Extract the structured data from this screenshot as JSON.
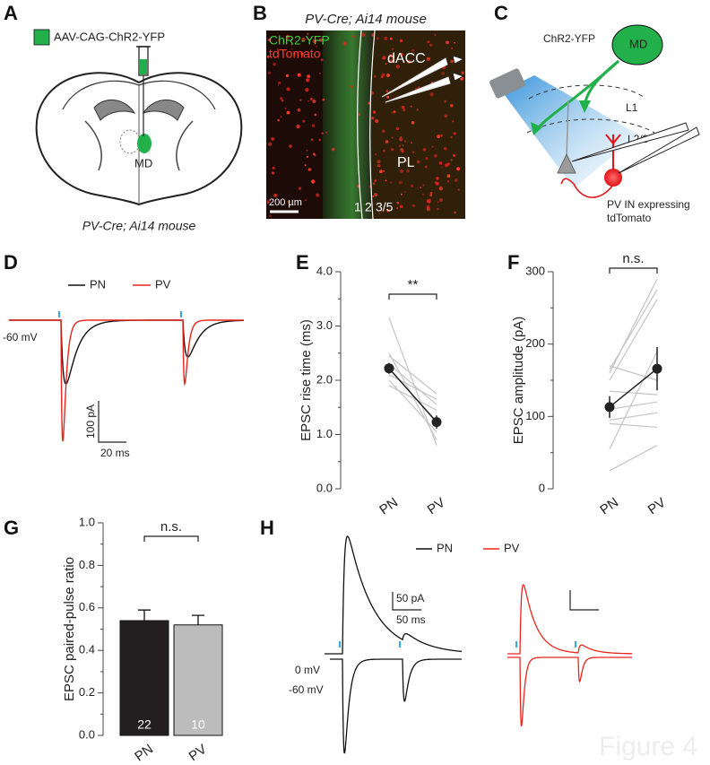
{
  "panel_labels": [
    "A",
    "B",
    "C",
    "D",
    "E",
    "F",
    "G",
    "H"
  ],
  "panel_a": {
    "construct": "AAV-CAG-ChR2-YFP",
    "region": "MD",
    "mouse": "PV-Cre; Ai14 mouse"
  },
  "panel_b": {
    "title": "PV-Cre; Ai14 mouse",
    "channels": [
      "ChR2-YFP",
      "tdTomato"
    ],
    "regions": [
      "dACC",
      "PL"
    ],
    "layers": [
      "1",
      "2",
      "3/5"
    ],
    "scale_bar": "200 µm"
  },
  "panel_c": {
    "source": "ChR2-YFP",
    "region": "MD",
    "layers": [
      "L1",
      "L2/3"
    ],
    "cell_label": [
      "PV IN expressing",
      "tdTomato"
    ]
  },
  "panel_d": {
    "legend": [
      {
        "name": "PN",
        "color": "#111111"
      },
      {
        "name": "PV",
        "color": "#e8251d"
      }
    ],
    "holding": "-60 mV",
    "scale_y": "100 pA",
    "scale_x": "20 ms"
  },
  "panel_h": {
    "legend": [
      {
        "name": "PN",
        "color": "#111111"
      },
      {
        "name": "PV",
        "color": "#e8251d"
      }
    ],
    "holding": [
      "0 mV",
      "-60 mV"
    ],
    "scale_y": "50 pA",
    "scale_x": "50 ms"
  },
  "chart_data": [
    {
      "type": "line",
      "ylabel": "EPSC rise time (ms)",
      "categories": [
        "PN",
        "PV"
      ],
      "ylim": [
        0,
        4
      ],
      "yticks": [
        {
          "value": 0,
          "label": "0.0"
        },
        {
          "value": 1,
          "label": "1.0"
        },
        {
          "value": 2,
          "label": "2.0"
        },
        {
          "value": 3,
          "label": "3.0"
        },
        {
          "value": 4,
          "label": "4.0"
        }
      ],
      "yminorticks": [
        0.5,
        1.5,
        2.5,
        3.5
      ],
      "series": [
        {
          "color": "#c4c4c4",
          "values": [
            3.15,
            0.8
          ]
        },
        {
          "color": "#c4c4c4",
          "values": [
            2.5,
            0.9
          ]
        },
        {
          "color": "#c4c4c4",
          "values": [
            2.45,
            1.75
          ]
        },
        {
          "color": "#c4c4c4",
          "values": [
            2.3,
            1.55
          ]
        },
        {
          "color": "#c4c4c4",
          "values": [
            2.2,
            1.25
          ]
        },
        {
          "color": "#c4c4c4",
          "values": [
            2.1,
            1.65
          ]
        },
        {
          "color": "#c4c4c4",
          "values": [
            2.0,
            1.05
          ]
        },
        {
          "color": "#c4c4c4",
          "values": [
            1.9,
            1.45
          ]
        }
      ],
      "mean": {
        "color": "#222222",
        "values": [
          2.22,
          1.23
        ],
        "errors": [
          0.1,
          0.12
        ]
      },
      "annotation": "**"
    },
    {
      "type": "line",
      "ylabel": "EPSC amplitude (pA)",
      "categories": [
        "PN",
        "PV"
      ],
      "ylim": [
        0,
        300
      ],
      "yticks": [
        0,
        100,
        200,
        300
      ],
      "yminorticks": [
        50,
        150,
        250
      ],
      "series": [
        {
          "color": "#c4c4c4",
          "values": [
            160,
            290
          ]
        },
        {
          "color": "#c4c4c4",
          "values": [
            165,
            275
          ]
        },
        {
          "color": "#c4c4c4",
          "values": [
            150,
            262
          ]
        },
        {
          "color": "#c4c4c4",
          "values": [
            170,
            150
          ]
        },
        {
          "color": "#c4c4c4",
          "values": [
            135,
            130
          ]
        },
        {
          "color": "#c4c4c4",
          "values": [
            110,
            120
          ]
        },
        {
          "color": "#c4c4c4",
          "values": [
            95,
            105
          ]
        },
        {
          "color": "#c4c4c4",
          "values": [
            55,
            190
          ]
        },
        {
          "color": "#c4c4c4",
          "values": [
            90,
            85
          ]
        },
        {
          "color": "#c4c4c4",
          "values": [
            25,
            60
          ]
        }
      ],
      "mean": {
        "color": "#222222",
        "values": [
          113,
          166
        ],
        "errors": [
          15,
          30
        ]
      },
      "annotation": "n.s."
    },
    {
      "type": "bar",
      "ylabel": "EPSC paired-pulse ratio",
      "categories": [
        "PN",
        "PV"
      ],
      "ylim": [
        0,
        1
      ],
      "yticks": [
        {
          "value": 0,
          "label": "0.0"
        },
        {
          "value": 0.2,
          "label": "0.2"
        },
        {
          "value": 0.4,
          "label": "0.4"
        },
        {
          "value": 0.6,
          "label": "0.6"
        },
        {
          "value": 0.8,
          "label": "0.8"
        },
        {
          "value": 1,
          "label": "1.0"
        }
      ],
      "yminorticks": [
        0.1,
        0.3,
        0.5,
        0.7,
        0.9
      ],
      "values": [
        0.54,
        0.52
      ],
      "errors": [
        0.05,
        0.045
      ],
      "colors": [
        "#231f20",
        "#bcbcbc"
      ],
      "n": [
        22,
        10
      ],
      "annotation": "n.s."
    }
  ],
  "watermark": "Figure 4"
}
